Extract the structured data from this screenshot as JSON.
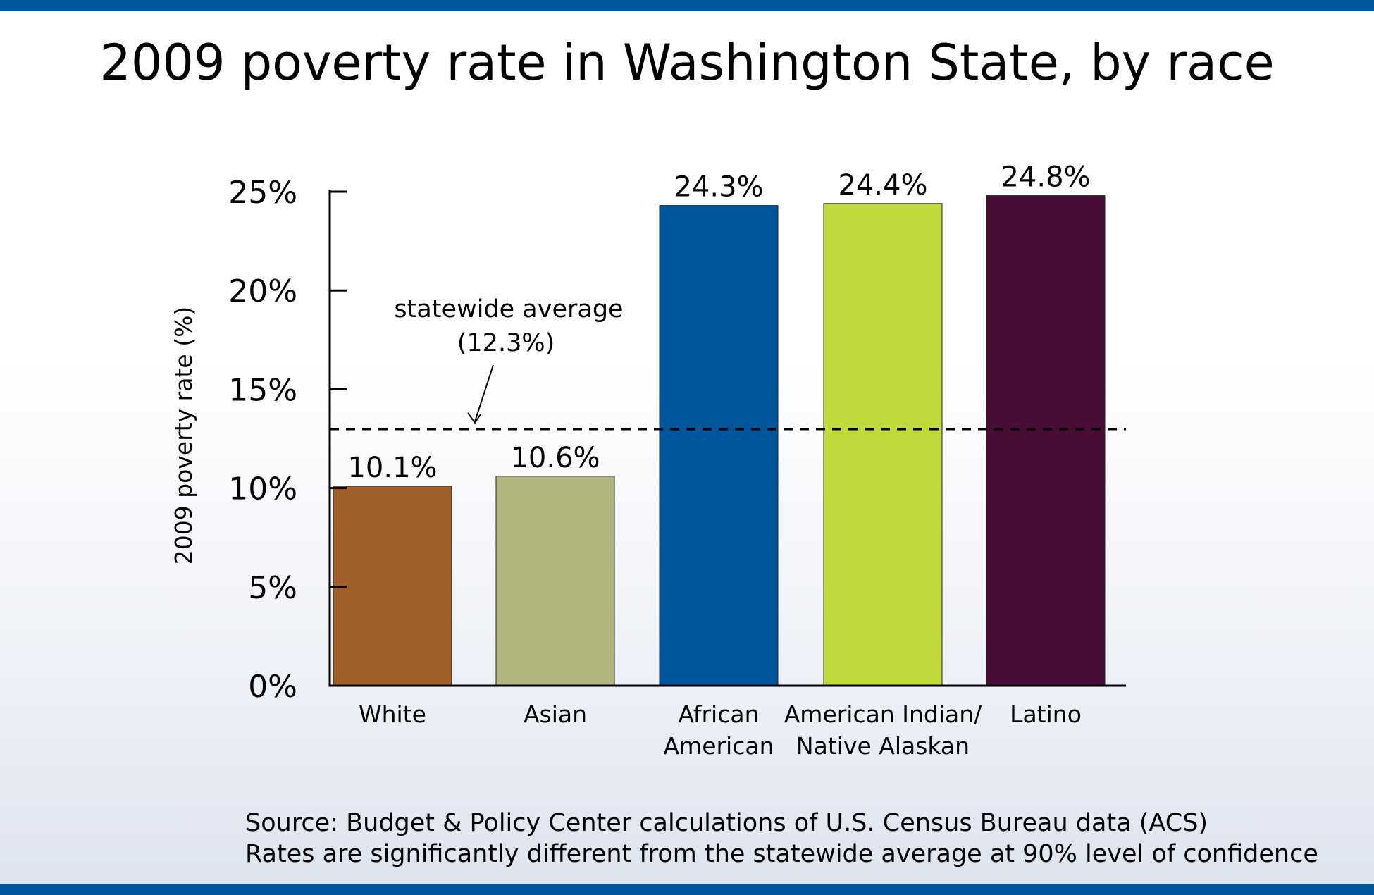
{
  "page": {
    "title": "2009 poverty rate in Washington State, by race",
    "source_line": "Source: Budget & Policy Center calculations of U.S. Census Bureau data (ACS)",
    "note_line": "Rates are significantly different from the statewide average at 90% level of confidence",
    "accent_color": "#00569a"
  },
  "chart_data": {
    "type": "bar",
    "title": "2009 poverty rate in Washington State, by race",
    "xlabel": "",
    "ylabel": "2009 poverty rate (%)",
    "ylim": [
      0,
      25
    ],
    "yticks": [
      0,
      5,
      10,
      15,
      20,
      25
    ],
    "ytick_labels": [
      "0%",
      "5%",
      "10%",
      "15%",
      "20%",
      "25%"
    ],
    "categories": [
      [
        "White"
      ],
      [
        "Asian"
      ],
      [
        "African",
        "American"
      ],
      [
        "American Indian/",
        "Native Alaskan"
      ],
      [
        "Latino"
      ]
    ],
    "values": [
      10.1,
      10.6,
      24.3,
      24.4,
      24.8
    ],
    "value_labels": [
      "10.1%",
      "10.6%",
      "24.3%",
      "24.4%",
      "24.8%"
    ],
    "colors": [
      "#a05e28",
      "#b1b57d",
      "#00569a",
      "#c1d93b",
      "#470d35"
    ],
    "reference_line": {
      "value": 12.3,
      "label_line1": "statewide average",
      "label_line2": "(12.3%)",
      "style": "dashed"
    },
    "grid": false,
    "legend": "none"
  }
}
